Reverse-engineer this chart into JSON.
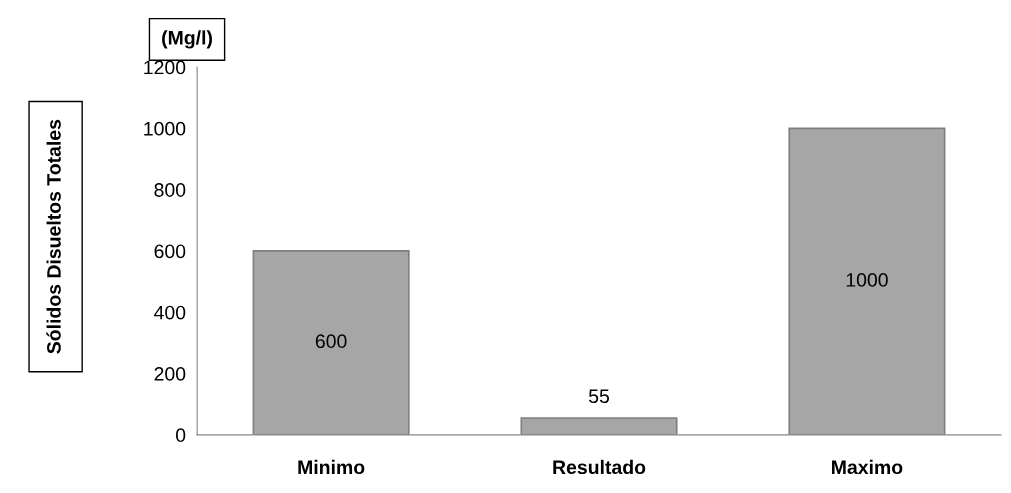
{
  "chart_data": {
    "type": "bar",
    "ylabel": "Sólidos Disueltos Totales",
    "annotations": [
      "(Mg/l)"
    ],
    "categories": [
      "Minimo",
      "Resultado",
      "Maximo"
    ],
    "values": [
      600,
      55,
      1000
    ],
    "color": "#a6a6a6",
    "ylim": [
      0,
      1200
    ],
    "yticks": [
      0,
      200,
      400,
      600,
      800,
      1000,
      1200
    ],
    "data_labels": true,
    "grid": false,
    "legend": false
  }
}
